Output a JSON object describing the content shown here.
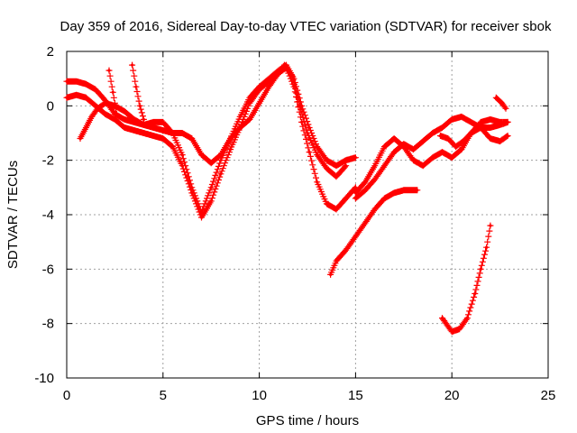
{
  "chart_data": {
    "type": "scatter",
    "title": "Day 359 of 2016, Sidereal Day-to-day VTEC variation (SDTVAR) for receiver sbok",
    "xlabel": "GPS time / hours",
    "ylabel": "SDTVAR / TECUs",
    "xlim": [
      0,
      25
    ],
    "ylim": [
      -10,
      2
    ],
    "xticks": [
      "0",
      "5",
      "10",
      "15",
      "20",
      "25"
    ],
    "yticks": [
      "2",
      "0",
      "-2",
      "-4",
      "-6",
      "-8",
      "-10"
    ],
    "grid": true,
    "marker": "+",
    "color": "#ff0000",
    "series": [
      {
        "name": "track-1",
        "points": [
          [
            0,
            0.9
          ],
          [
            0.5,
            0.9
          ],
          [
            1,
            0.8
          ],
          [
            1.5,
            0.6
          ],
          [
            2,
            0.2
          ],
          [
            2.5,
            -0.3
          ],
          [
            3,
            -0.5
          ],
          [
            3.5,
            -0.6
          ],
          [
            4,
            -0.7
          ],
          [
            4.5,
            -0.6
          ],
          [
            5,
            -0.6
          ],
          [
            5.5,
            -1.0
          ],
          [
            6,
            -1.8
          ],
          [
            6.5,
            -3.0
          ],
          [
            7,
            -3.9
          ],
          [
            7.5,
            -3.0
          ],
          [
            8,
            -2.0
          ],
          [
            8.5,
            -1.2
          ],
          [
            9,
            -0.4
          ],
          [
            9.5,
            0.3
          ],
          [
            10,
            0.7
          ],
          [
            10.5,
            1.0
          ],
          [
            11,
            1.3
          ],
          [
            11.4,
            1.5
          ],
          [
            11.8,
            1.0
          ],
          [
            12.2,
            0.0
          ],
          [
            12.6,
            -0.8
          ],
          [
            13,
            -1.5
          ],
          [
            13.5,
            -2.0
          ],
          [
            14,
            -2.2
          ],
          [
            14.5,
            -2.0
          ],
          [
            15,
            -1.9
          ]
        ]
      },
      {
        "name": "track-2",
        "points": [
          [
            0,
            0.3
          ],
          [
            0.5,
            0.4
          ],
          [
            1,
            0.3
          ],
          [
            1.5,
            0.0
          ],
          [
            2,
            -0.3
          ],
          [
            2.5,
            -0.5
          ],
          [
            3,
            -0.8
          ],
          [
            3.5,
            -0.9
          ],
          [
            4,
            -1.0
          ],
          [
            4.5,
            -1.1
          ],
          [
            5,
            -1.2
          ],
          [
            5.5,
            -1.5
          ],
          [
            6,
            -2.2
          ],
          [
            6.5,
            -3.2
          ],
          [
            7,
            -4.1
          ],
          [
            7.5,
            -3.5
          ],
          [
            8,
            -2.5
          ],
          [
            8.5,
            -1.6
          ],
          [
            9,
            -0.8
          ],
          [
            9.5,
            0.1
          ],
          [
            10,
            0.6
          ],
          [
            10.5,
            0.9
          ],
          [
            11,
            1.2
          ],
          [
            11.4,
            1.4
          ],
          [
            11.8,
            0.7
          ],
          [
            12.2,
            -0.6
          ],
          [
            12.6,
            -1.7
          ],
          [
            13,
            -2.8
          ],
          [
            13.5,
            -3.6
          ],
          [
            14,
            -3.8
          ],
          [
            14.5,
            -3.4
          ],
          [
            15,
            -3.0
          ]
        ]
      },
      {
        "name": "track-3",
        "points": [
          [
            0.7,
            -1.2
          ],
          [
            1,
            -0.8
          ],
          [
            1.3,
            -0.4
          ],
          [
            1.6,
            -0.1
          ],
          [
            2,
            0.1
          ],
          [
            2.5,
            0.0
          ],
          [
            3,
            -0.2
          ],
          [
            3.5,
            -0.5
          ],
          [
            4,
            -0.7
          ],
          [
            4.5,
            -0.8
          ],
          [
            5,
            -0.9
          ],
          [
            5.5,
            -1.0
          ],
          [
            6,
            -1.0
          ],
          [
            6.5,
            -1.2
          ],
          [
            7,
            -1.8
          ],
          [
            7.5,
            -2.1
          ],
          [
            8,
            -1.8
          ],
          [
            8.5,
            -1.2
          ],
          [
            9,
            -0.8
          ],
          [
            9.5,
            -0.5
          ],
          [
            10,
            0.1
          ],
          [
            10.5,
            0.7
          ],
          [
            11,
            1.2
          ],
          [
            11.3,
            1.5
          ],
          [
            11.7,
            1.1
          ],
          [
            12.1,
            0.0
          ],
          [
            12.5,
            -1.0
          ],
          [
            13,
            -1.8
          ],
          [
            13.5,
            -2.3
          ],
          [
            14,
            -2.6
          ],
          [
            14.5,
            -2.2
          ]
        ]
      },
      {
        "name": "track-4",
        "points": [
          [
            2.2,
            1.3
          ],
          [
            2.4,
            0.5
          ],
          [
            2.6,
            -0.3
          ]
        ]
      },
      {
        "name": "track-5",
        "points": [
          [
            3.4,
            1.5
          ],
          [
            3.6,
            0.7
          ],
          [
            3.8,
            0.0
          ],
          [
            4.0,
            -0.5
          ]
        ]
      },
      {
        "name": "track-6",
        "points": [
          [
            15,
            -3.2
          ],
          [
            15.5,
            -2.8
          ],
          [
            16,
            -2.2
          ],
          [
            16.5,
            -1.5
          ],
          [
            17,
            -1.2
          ],
          [
            17.5,
            -1.5
          ],
          [
            18,
            -2.0
          ],
          [
            18.5,
            -2.2
          ],
          [
            19,
            -1.9
          ],
          [
            19.5,
            -1.7
          ],
          [
            20,
            -1.9
          ],
          [
            20.5,
            -1.6
          ],
          [
            21,
            -1.0
          ],
          [
            21.5,
            -0.6
          ],
          [
            22,
            -0.5
          ],
          [
            22.5,
            -0.6
          ],
          [
            22.9,
            -0.6
          ]
        ]
      },
      {
        "name": "track-7",
        "points": [
          [
            15,
            -3.4
          ],
          [
            15.5,
            -3.1
          ],
          [
            16,
            -2.7
          ],
          [
            16.5,
            -2.2
          ],
          [
            17,
            -1.7
          ],
          [
            17.5,
            -1.4
          ],
          [
            18,
            -1.6
          ],
          [
            18.5,
            -1.3
          ],
          [
            19,
            -1.0
          ],
          [
            19.5,
            -0.8
          ],
          [
            20,
            -0.5
          ],
          [
            20.5,
            -0.4
          ],
          [
            21,
            -0.6
          ],
          [
            21.5,
            -0.8
          ],
          [
            22,
            -1.2
          ],
          [
            22.5,
            -1.3
          ],
          [
            22.9,
            -1.1
          ]
        ]
      },
      {
        "name": "track-8",
        "points": [
          [
            13.7,
            -6.2
          ],
          [
            14,
            -5.7
          ],
          [
            14.5,
            -5.3
          ],
          [
            15,
            -4.8
          ],
          [
            15.5,
            -4.3
          ],
          [
            16,
            -3.8
          ],
          [
            16.5,
            -3.4
          ],
          [
            17,
            -3.2
          ],
          [
            17.5,
            -3.1
          ],
          [
            18,
            -3.1
          ],
          [
            18.2,
            -3.1
          ]
        ]
      },
      {
        "name": "track-9",
        "points": [
          [
            19.4,
            -1.1
          ],
          [
            19.8,
            -1.2
          ],
          [
            20.2,
            -1.5
          ],
          [
            20.6,
            -1.3
          ],
          [
            21,
            -1.0
          ],
          [
            21.5,
            -0.8
          ],
          [
            22,
            -0.8
          ],
          [
            22.5,
            -0.7
          ],
          [
            22.9,
            -0.6
          ]
        ]
      },
      {
        "name": "track-10",
        "points": [
          [
            22.3,
            0.3
          ],
          [
            22.6,
            0.1
          ],
          [
            22.8,
            -0.1
          ]
        ]
      },
      {
        "name": "track-11",
        "points": [
          [
            19.5,
            -7.8
          ],
          [
            19.8,
            -8.1
          ],
          [
            20.0,
            -8.3
          ],
          [
            20.4,
            -8.2
          ],
          [
            20.8,
            -7.8
          ],
          [
            21.2,
            -6.9
          ],
          [
            21.5,
            -6.0
          ],
          [
            21.8,
            -5.2
          ],
          [
            22.0,
            -4.4
          ]
        ]
      }
    ]
  }
}
